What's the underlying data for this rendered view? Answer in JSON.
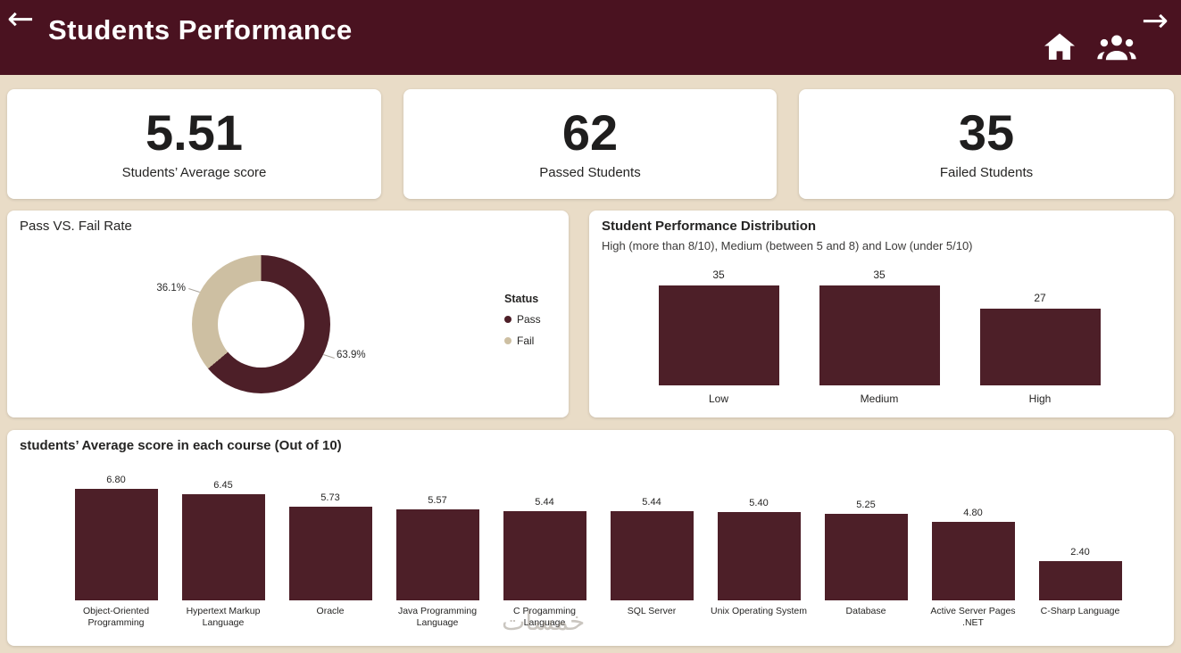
{
  "header": {
    "title": "Students Performance",
    "back_icon": "←",
    "forward_icon": "→"
  },
  "kpi_cards": [
    {
      "value": "5.51",
      "label": "Students’ Average score"
    },
    {
      "value": "62",
      "label": "Passed Students"
    },
    {
      "value": "35",
      "label": "Failed Students"
    }
  ],
  "watermark": "خمسات",
  "colors": {
    "header_background": "#4a1220",
    "page_background": "#e9dcc7",
    "card_background": "#ffffff",
    "maroon": "#4d1f28",
    "tan": "#cdbfa2",
    "text": "#252423"
  },
  "chart_data": [
    {
      "type": "pie",
      "donut": true,
      "title": "Pass VS. Fail Rate",
      "legend_title": "Status",
      "legend_position": "right",
      "labels": [
        "Pass",
        "Fail"
      ],
      "values": [
        63.9,
        36.1
      ],
      "value_labels": [
        "63.9%",
        "36.1%"
      ],
      "colors": [
        "#4d1f28",
        "#cdbfa2"
      ]
    },
    {
      "type": "bar",
      "title": "Student Performance Distribution",
      "subtitle": "High (more than 8/10), Medium (between 5 and 8) and Low (under 5/10)",
      "categories": [
        "Low",
        "Medium",
        "High"
      ],
      "values": [
        35,
        35,
        27
      ],
      "value_labels": [
        "35",
        "35",
        "27"
      ],
      "bar_color": "#4d1f28",
      "grid": false,
      "legend": "none"
    },
    {
      "type": "bar",
      "title": "students’ Average score in each course (Out of 10)",
      "categories": [
        "Object-Oriented Programming",
        "Hypertext Markup Language",
        "Oracle",
        "Java Programming Language",
        "C Progamming Language",
        "SQL Server",
        "Unix Operating System",
        "Database",
        "Active Server Pages .NET",
        "C-Sharp Language"
      ],
      "values": [
        6.8,
        6.45,
        5.73,
        5.57,
        5.44,
        5.44,
        5.4,
        5.25,
        4.8,
        2.4
      ],
      "value_labels": [
        "6.80",
        "6.45",
        "5.73",
        "5.57",
        "5.44",
        "5.44",
        "5.40",
        "5.25",
        "4.80",
        "2.40"
      ],
      "bar_color": "#4d1f28",
      "grid": false,
      "legend": "none"
    }
  ]
}
